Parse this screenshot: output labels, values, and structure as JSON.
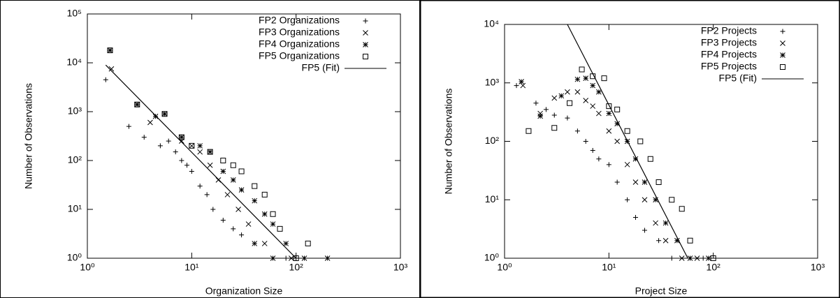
{
  "chart_data": [
    {
      "type": "scatter",
      "x_label": "Organization Size",
      "y_label": "Number of Observations",
      "log_x": true,
      "log_y": true,
      "legend": "top-right",
      "xlim": [
        1,
        1000
      ],
      "ylim": [
        1,
        100000
      ],
      "xticks": [
        {
          "value": 1,
          "label": "10⁰"
        },
        {
          "value": 10,
          "label": "10¹"
        },
        {
          "value": 100,
          "label": "10²"
        },
        {
          "value": 1000,
          "label": "10³"
        }
      ],
      "yticks": [
        {
          "value": 1,
          "label": "10⁰"
        },
        {
          "value": 10,
          "label": "10¹"
        },
        {
          "value": 100,
          "label": "10²"
        },
        {
          "value": 1000,
          "label": "10³"
        },
        {
          "value": 10000,
          "label": "10⁴"
        },
        {
          "value": 100000,
          "label": "10⁵"
        }
      ],
      "series": [
        {
          "name": "FP2 Organizations",
          "marker": "plus",
          "color": "#000000",
          "x": [
            1.5,
            2.5,
            3.5,
            5,
            6,
            7,
            8,
            9,
            10,
            12,
            14,
            16,
            20,
            25,
            30,
            40,
            60,
            80,
            100
          ],
          "values": [
            4500,
            500,
            300,
            200,
            250,
            150,
            100,
            80,
            60,
            30,
            20,
            10,
            6,
            4,
            3,
            2,
            1,
            1,
            1
          ]
        },
        {
          "name": "FP3 Organizations",
          "marker": "cross",
          "color": "#000000",
          "x": [
            1.7,
            3,
            4,
            5.5,
            8,
            10,
            12,
            15,
            18,
            22,
            28,
            35,
            40,
            50,
            60,
            90
          ],
          "values": [
            7500,
            1400,
            600,
            900,
            250,
            200,
            150,
            80,
            40,
            20,
            10,
            5,
            2,
            2,
            1,
            1
          ]
        },
        {
          "name": "FP4 Organizations",
          "marker": "star",
          "color": "#000000",
          "x": [
            1.65,
            3,
            4.5,
            5.5,
            8,
            12,
            15,
            20,
            25,
            30,
            40,
            50,
            60,
            80,
            120,
            200
          ],
          "values": [
            18000,
            1400,
            800,
            900,
            300,
            200,
            150,
            60,
            40,
            25,
            15,
            8,
            5,
            2,
            1,
            1
          ]
        },
        {
          "name": "FP5 Organizations",
          "marker": "square",
          "color": "#000000",
          "x": [
            1.65,
            3,
            5.5,
            8,
            10,
            15,
            20,
            25,
            30,
            40,
            50,
            60,
            70,
            100,
            130
          ],
          "values": [
            18000,
            1400,
            900,
            300,
            200,
            150,
            100,
            80,
            60,
            30,
            20,
            8,
            4,
            1,
            2
          ]
        },
        {
          "name": "FP5 (Fit)",
          "marker": "line",
          "color": "#000000",
          "x": [
            1.5,
            100
          ],
          "values": [
            9000,
            1
          ]
        }
      ]
    },
    {
      "type": "scatter",
      "x_label": "Project Size",
      "y_label": "Number of Observations",
      "log_x": true,
      "log_y": true,
      "legend": "top-right",
      "xlim": [
        1,
        1000
      ],
      "ylim": [
        1,
        10000
      ],
      "xticks": [
        {
          "value": 1,
          "label": "10⁰"
        },
        {
          "value": 10,
          "label": "10¹"
        },
        {
          "value": 100,
          "label": "10²"
        },
        {
          "value": 1000,
          "label": "10³"
        }
      ],
      "yticks": [
        {
          "value": 1,
          "label": "10⁰"
        },
        {
          "value": 10,
          "label": "10¹"
        },
        {
          "value": 100,
          "label": "10²"
        },
        {
          "value": 1000,
          "label": "10³"
        },
        {
          "value": 10000,
          "label": "10⁴"
        }
      ],
      "series": [
        {
          "name": "FP2 Projects",
          "marker": "plus",
          "color": "#000000",
          "x": [
            1.3,
            2,
            2.5,
            3,
            4,
            5,
            6,
            7,
            8,
            10,
            12,
            15,
            18,
            22,
            30,
            40,
            60,
            80
          ],
          "values": [
            900,
            450,
            350,
            280,
            250,
            150,
            100,
            70,
            50,
            40,
            20,
            10,
            5,
            3,
            2,
            1,
            1,
            1
          ]
        },
        {
          "name": "FP3 Projects",
          "marker": "cross",
          "color": "#000000",
          "x": [
            1.5,
            2.2,
            3,
            4,
            5,
            6,
            7,
            8,
            10,
            12,
            15,
            18,
            22,
            28,
            35,
            50,
            70
          ],
          "values": [
            900,
            300,
            550,
            700,
            700,
            500,
            400,
            300,
            150,
            100,
            40,
            20,
            10,
            4,
            2,
            1,
            1
          ]
        },
        {
          "name": "FP4 Projects",
          "marker": "star",
          "color": "#000000",
          "x": [
            1.45,
            2.2,
            3.5,
            5,
            6,
            7,
            8,
            10,
            12,
            15,
            18,
            22,
            28,
            35,
            45,
            60,
            90
          ],
          "values": [
            1050,
            270,
            600,
            1150,
            1200,
            900,
            700,
            300,
            200,
            100,
            50,
            20,
            10,
            4,
            2,
            1,
            1
          ]
        },
        {
          "name": "FP5 Projects",
          "marker": "square",
          "color": "#000000",
          "x": [
            1.7,
            3,
            4.2,
            5.5,
            7,
            9,
            10,
            12,
            15,
            20,
            25,
            30,
            40,
            50,
            60,
            100
          ],
          "values": [
            150,
            170,
            450,
            1700,
            1300,
            1200,
            400,
            350,
            150,
            100,
            50,
            20,
            10,
            7,
            2,
            1
          ]
        },
        {
          "name": "FP5 (Fit)",
          "marker": "line",
          "color": "#000000",
          "x": [
            4,
            57
          ],
          "values": [
            10000,
            1
          ]
        }
      ]
    }
  ]
}
